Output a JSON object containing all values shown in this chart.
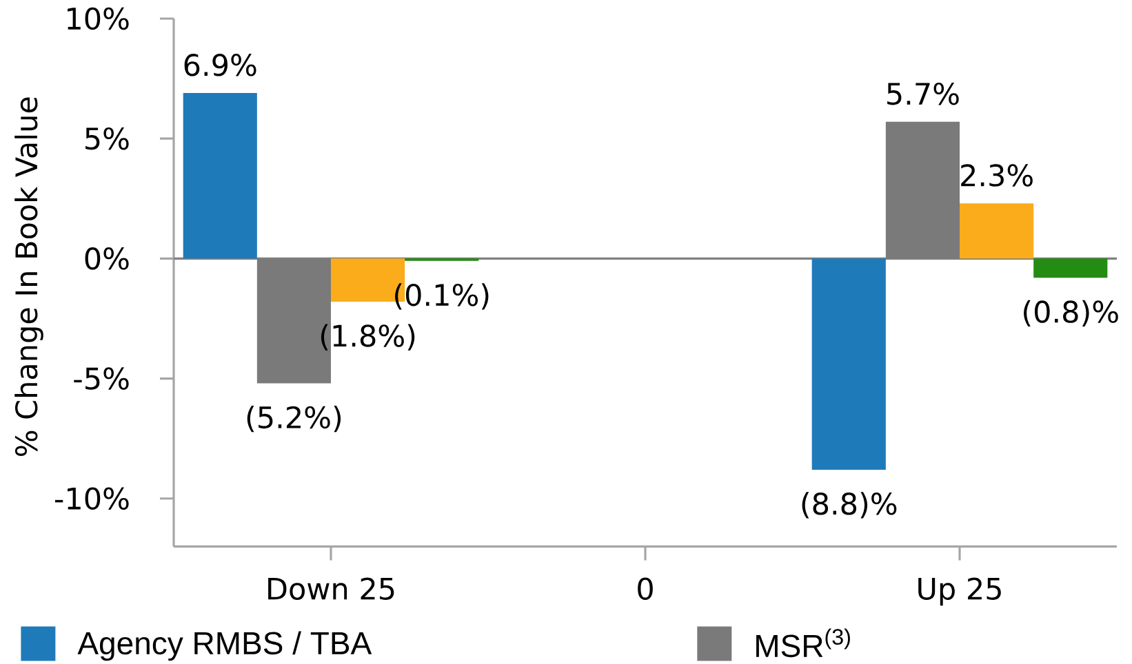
{
  "chart_data": {
    "type": "bar",
    "ylabel": "% Change In Book Value",
    "categories": [
      "Down 25",
      "0",
      "Up 25"
    ],
    "series": [
      {
        "name": "Agency RMBS / TBA",
        "color": "#1f7aba",
        "values": [
          6.9,
          null,
          -8.8
        ],
        "value_labels": [
          "6.9%",
          null,
          "(8.8)%"
        ]
      },
      {
        "name": "MSR$^{(3)}$",
        "color": "#7a7a7a",
        "values": [
          -5.2,
          null,
          5.7
        ],
        "value_labels": [
          "(5.2%)",
          null,
          "5.7%"
        ]
      },
      {
        "color": "#faac1b",
        "values": [
          -1.8,
          null,
          2.3
        ],
        "value_labels": [
          "(1.8%)",
          null,
          "2.3%"
        ]
      },
      {
        "color": "#258c13",
        "values": [
          -0.1,
          null,
          -0.8
        ],
        "value_labels": [
          "(0.1%)",
          null,
          "(0.8)%"
        ]
      }
    ],
    "ylim": [
      -12,
      10
    ],
    "yticks": [
      {
        "value": -10,
        "label": "-10%"
      },
      {
        "value": -5,
        "label": "-5%"
      },
      {
        "value": 0,
        "label": "0%"
      },
      {
        "value": 5,
        "label": "5%"
      },
      {
        "value": 10,
        "label": "10%"
      }
    ],
    "ref_lines": [
      {
        "axis": "y",
        "value": 0,
        "color": "#808080"
      }
    ],
    "legend": "bottom"
  }
}
